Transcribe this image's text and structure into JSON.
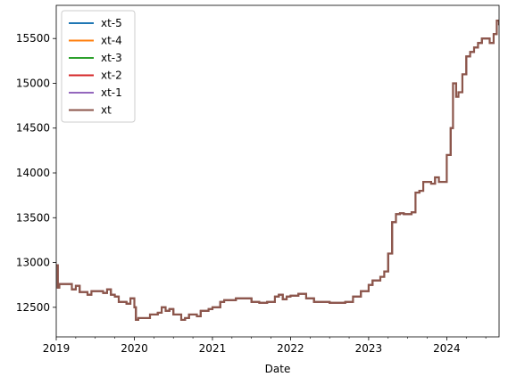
{
  "chart_data": {
    "type": "line",
    "title": "",
    "xlabel": "Date",
    "ylabel": "",
    "x_ticks": [
      {
        "label": "2019",
        "value": 2019.0
      },
      {
        "label": "2020",
        "value": 2020.0
      },
      {
        "label": "2021",
        "value": 2021.0
      },
      {
        "label": "2022",
        "value": 2022.0
      },
      {
        "label": "2023",
        "value": 2023.0
      },
      {
        "label": "2024",
        "value": 2024.0
      }
    ],
    "y_ticks": [
      12500,
      13000,
      13500,
      14000,
      14500,
      15000,
      15500
    ],
    "xlim": [
      2019.0,
      2024.67
    ],
    "ylim": [
      12170,
      15870
    ],
    "grid": false,
    "legend_position": "upper-left",
    "series": [
      {
        "name": "xt-5",
        "color": "#1f77b4"
      },
      {
        "name": "xt-4",
        "color": "#ff7f0e"
      },
      {
        "name": "xt-3",
        "color": "#2ca02c"
      },
      {
        "name": "xt-2",
        "color": "#d62728"
      },
      {
        "name": "xt-1",
        "color": "#9467bd"
      },
      {
        "name": "xt",
        "color": "#8c564b"
      }
    ],
    "x": [
      2019.0,
      2019.02,
      2019.04,
      2019.2,
      2019.25,
      2019.3,
      2019.4,
      2019.45,
      2019.6,
      2019.65,
      2019.7,
      2019.75,
      2019.8,
      2019.9,
      2019.95,
      2020.0,
      2020.02,
      2020.05,
      2020.2,
      2020.3,
      2020.35,
      2020.4,
      2020.45,
      2020.5,
      2020.6,
      2020.65,
      2020.7,
      2020.8,
      2020.85,
      2020.95,
      2021.0,
      2021.1,
      2021.15,
      2021.3,
      2021.5,
      2021.6,
      2021.7,
      2021.8,
      2021.85,
      2021.9,
      2021.95,
      2022.0,
      2022.1,
      2022.2,
      2022.3,
      2022.5,
      2022.6,
      2022.7,
      2022.8,
      2022.9,
      2023.0,
      2023.05,
      2023.15,
      2023.2,
      2023.25,
      2023.3,
      2023.35,
      2023.4,
      2023.45,
      2023.55,
      2023.6,
      2023.65,
      2023.7,
      2023.75,
      2023.8,
      2023.85,
      2023.9,
      2024.0,
      2024.05,
      2024.08,
      2024.12,
      2024.15,
      2024.2,
      2024.25,
      2024.3,
      2024.35,
      2024.4,
      2024.45,
      2024.5,
      2024.55,
      2024.6,
      2024.64,
      2024.67
    ],
    "values": [
      12970,
      12720,
      12760,
      12700,
      12740,
      12670,
      12640,
      12680,
      12660,
      12700,
      12640,
      12620,
      12560,
      12540,
      12600,
      12500,
      12360,
      12380,
      12420,
      12440,
      12500,
      12460,
      12480,
      12420,
      12360,
      12380,
      12420,
      12400,
      12460,
      12480,
      12500,
      12560,
      12580,
      12600,
      12560,
      12550,
      12560,
      12620,
      12640,
      12590,
      12620,
      12630,
      12650,
      12600,
      12560,
      12550,
      12550,
      12560,
      12620,
      12680,
      12750,
      12800,
      12840,
      12900,
      13100,
      13450,
      13540,
      13550,
      13540,
      13560,
      13780,
      13800,
      13900,
      13900,
      13880,
      13950,
      13900,
      14200,
      14500,
      15000,
      14850,
      14900,
      15100,
      15300,
      15350,
      15400,
      15450,
      15500,
      15500,
      15450,
      15550,
      15700,
      15650
    ]
  }
}
